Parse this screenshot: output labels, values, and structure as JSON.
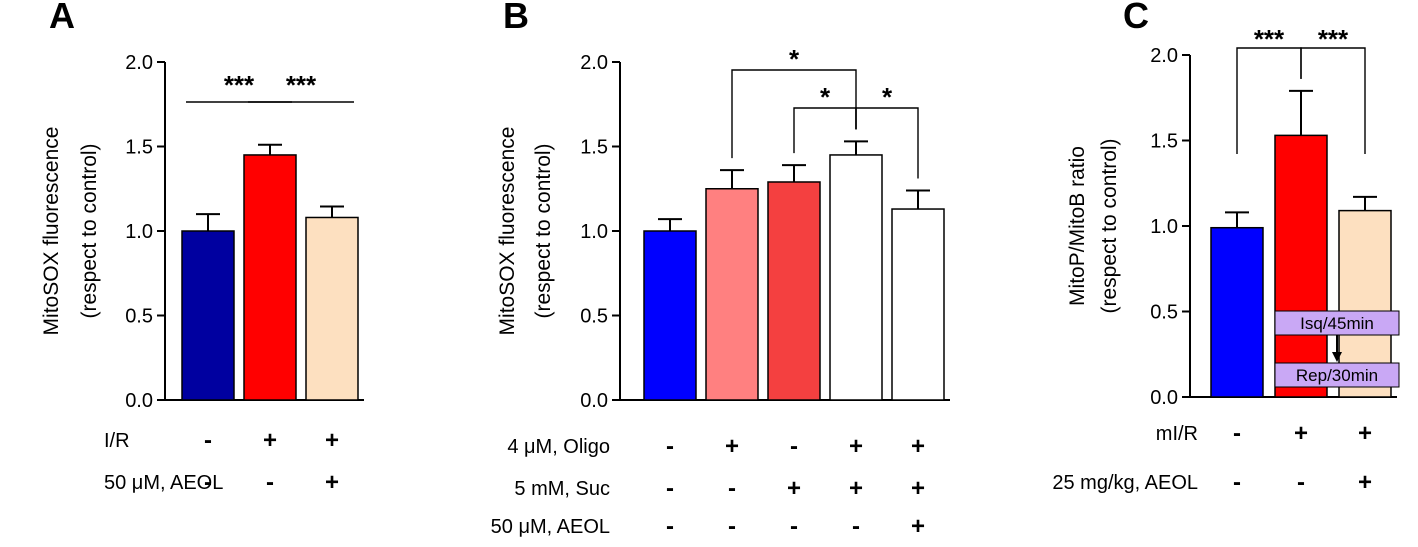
{
  "chart_data": [
    {
      "type": "bar",
      "panel": "A",
      "ylabel_line1": "MitoSOX fluorescence",
      "ylabel_line2": "(respect to control)",
      "ylim": [
        0,
        2.0
      ],
      "yticks": [
        "0.0",
        "0.5",
        "1.0",
        "1.5",
        "2.0"
      ],
      "values": [
        1.0,
        1.45,
        1.08
      ],
      "errors": [
        0.1,
        0.06,
        0.065
      ],
      "colors": [
        "#0000a0",
        "#ff0000",
        "#fde0c0"
      ],
      "conditions": [
        {
          "label": "I/R",
          "marks": [
            "-",
            "+",
            "+"
          ]
        },
        {
          "label": "50 μM, AEOL",
          "marks": [
            "-",
            "-",
            "+"
          ]
        }
      ],
      "significance": [
        {
          "from": 0,
          "to": 1,
          "label": "***",
          "style": "line"
        },
        {
          "from": 1,
          "to": 2,
          "label": "***",
          "style": "line"
        }
      ]
    },
    {
      "type": "bar",
      "panel": "B",
      "ylabel_line1": "MitoSOX fluorescence",
      "ylabel_line2": "(respect to control)",
      "ylim": [
        0,
        2.0
      ],
      "yticks": [
        "0.0",
        "0.5",
        "1.0",
        "1.5",
        "2.0"
      ],
      "values": [
        1.0,
        1.25,
        1.29,
        1.45,
        1.13
      ],
      "errors": [
        0.07,
        0.11,
        0.1,
        0.08,
        0.11
      ],
      "colors": [
        "#0000ff",
        "#ff8080",
        "#f44040",
        "#ffffff",
        "#ffffff"
      ],
      "conditions": [
        {
          "label": "4 μM, Oligo",
          "marks": [
            "-",
            "+",
            "-",
            "+",
            "+"
          ]
        },
        {
          "label": "5 mM, Suc",
          "marks": [
            "-",
            "-",
            "+",
            "+",
            "+"
          ]
        },
        {
          "label": "50 μM, AEOL",
          "marks": [
            "-",
            "-",
            "-",
            "-",
            "+"
          ]
        }
      ],
      "significance": [
        {
          "from": 1,
          "to": 3,
          "label": "*",
          "style": "bracket"
        },
        {
          "from": 2,
          "to": 3,
          "label": "*",
          "style": "bracket"
        },
        {
          "from": 3,
          "to": 4,
          "label": "*",
          "style": "bracket"
        }
      ]
    },
    {
      "type": "bar",
      "panel": "C",
      "ylabel_line1": "MitoP/MitoB ratio",
      "ylabel_line2": "(respect to control)",
      "ylim": [
        0,
        2.0
      ],
      "yticks": [
        "0.0",
        "0.5",
        "1.0",
        "1.5",
        "2.0"
      ],
      "values": [
        0.99,
        1.53,
        1.09
      ],
      "errors": [
        0.09,
        0.26,
        0.08
      ],
      "colors": [
        "#0000ff",
        "#ff0000",
        "#fde0c0"
      ],
      "conditions": [
        {
          "label": "mI/R",
          "marks": [
            "-",
            "+",
            "+"
          ]
        },
        {
          "label": "25 mg/kg, AEOL",
          "marks": [
            "-",
            "-",
            "+"
          ]
        }
      ],
      "significance": [
        {
          "from": 0,
          "to": 1,
          "label": "***",
          "style": "bracket"
        },
        {
          "from": 1,
          "to": 2,
          "label": "***",
          "style": "bracket"
        }
      ],
      "callout": {
        "top": "Isq/45min",
        "bottom": "Rep/30min",
        "color": "#c9a8f5"
      }
    }
  ]
}
